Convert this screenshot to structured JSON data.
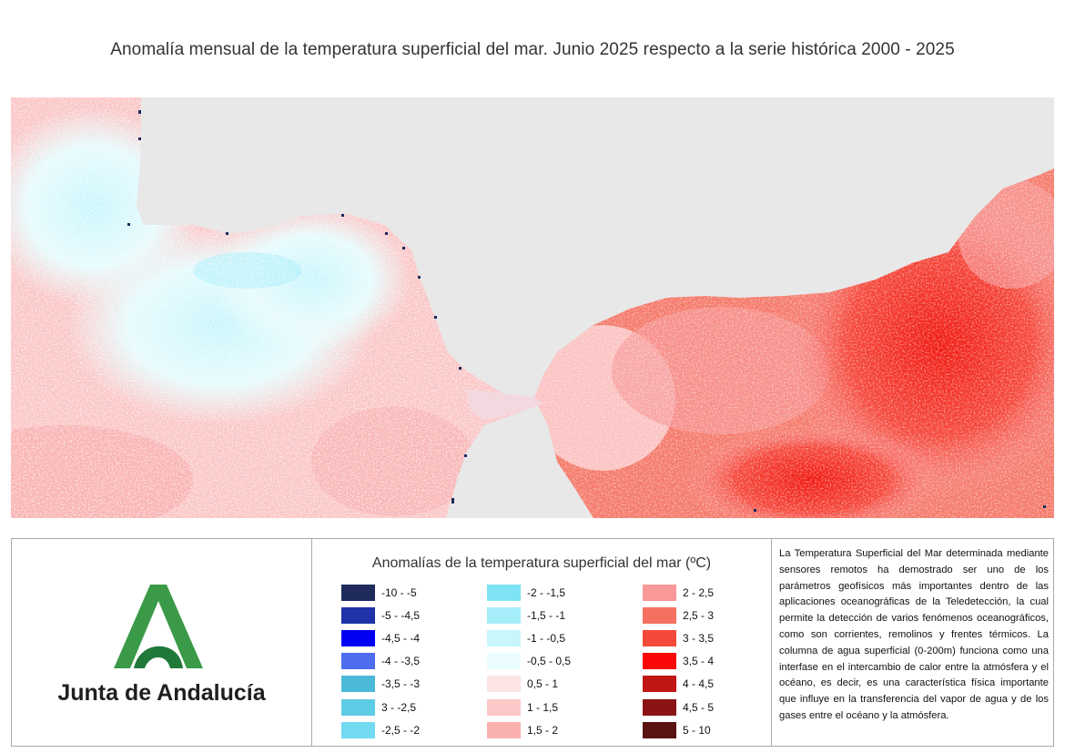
{
  "title": "Anomalía mensual de la temperatura superficial del mar. Junio 2025 respecto a la serie histórica 2000 - 2025",
  "map": {
    "land_color": "#e8e8e8",
    "description": "Sea surface temperature anomaly raster: Gulf of Cádiz (west) mostly light pink with cyan patches near the coast; Alborán Sea (east) strong red anomalies."
  },
  "logo": {
    "text": "Junta de Andalucía",
    "color_green": "#3a9a47",
    "color_dark_green": "#1f7a3a"
  },
  "legend": {
    "title": "Anomalías de la temperatura superficial del mar (ºC)",
    "columns": [
      [
        {
          "label": "-10 - -5",
          "color": "#1d2a5a"
        },
        {
          "label": "-5 - -4,5",
          "color": "#2032a8"
        },
        {
          "label": "-4,5 - -4",
          "color": "#0000f5"
        },
        {
          "label": "-4 - -3,5",
          "color": "#4e6cf0"
        },
        {
          "label": "-3,5 - -3",
          "color": "#4bbad8"
        },
        {
          "label": "3 - -2,5",
          "color": "#5ecbe5"
        },
        {
          "label": "-2,5 - -2",
          "color": "#73daf2"
        }
      ],
      [
        {
          "label": "-2 - -1,5",
          "color": "#7ee3f5"
        },
        {
          "label": "-1,5 - -1",
          "color": "#a6eefa"
        },
        {
          "label": "-1 - -0,5",
          "color": "#c8f6fc"
        },
        {
          "label": "-0,5 - 0,5",
          "color": "#ebfdfe"
        },
        {
          "label": "0,5 - 1",
          "color": "#fde4e4"
        },
        {
          "label": "1 - 1,5",
          "color": "#fcc8c8"
        },
        {
          "label": "1,5 - 2",
          "color": "#fbb0b0"
        }
      ],
      [
        {
          "label": "2 - 2,5",
          "color": "#f89898"
        },
        {
          "label": "2,5 - 3",
          "color": "#f57060"
        },
        {
          "label": "3 - 3,5",
          "color": "#f54a3a"
        },
        {
          "label": "3,5 - 4",
          "color": "#fb0808"
        },
        {
          "label": "4 - 4,5",
          "color": "#c01616"
        },
        {
          "label": "4,5 - 5",
          "color": "#8a1414"
        },
        {
          "label": "5 - 10",
          "color": "#5a1212"
        }
      ]
    ]
  },
  "description_text": "La Temperatura Superficial del Mar determinada mediante sensores remotos ha demostrado ser uno de los parámetros geofísicos más importantes dentro de las aplicaciones oceanográficas de la Teledetección, la cual permite la detección de varios fenómenos oceanográficos, como son corrientes, remolinos y frentes térmicos. La columna de agua superficial (0-200m) funciona como una interfase en el intercambio de calor entre la atmósfera y el océano, es decir, es una característica física importante que influye en la transferencia del vapor de agua y de los gases entre el océano y la atmósfera."
}
